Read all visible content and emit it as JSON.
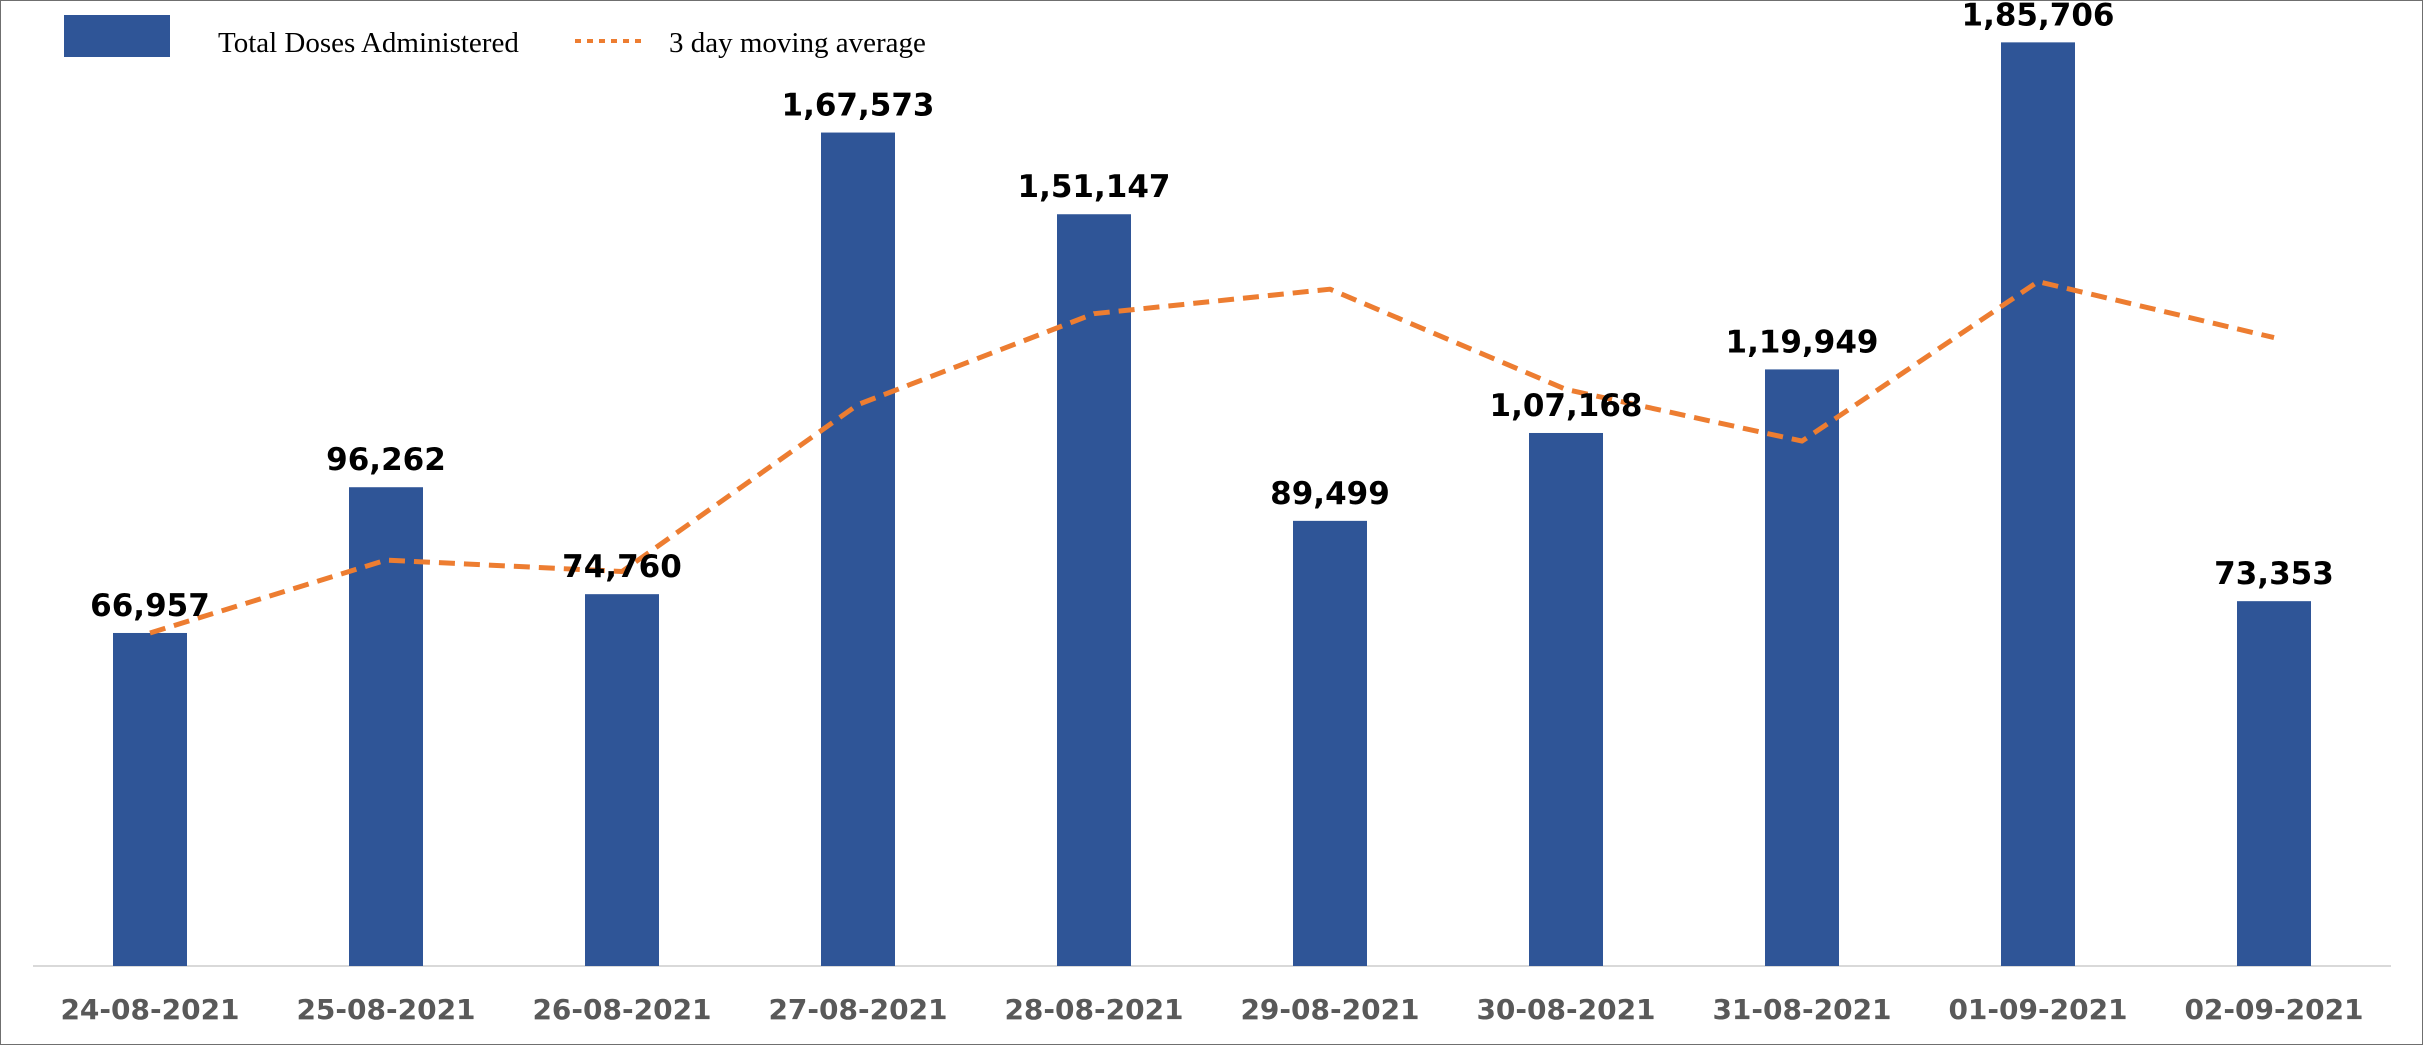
{
  "chart_data": {
    "type": "bar",
    "title": "",
    "xlabel": "",
    "ylabel": "",
    "categories": [
      "24-08-2021",
      "25-08-2021",
      "26-08-2021",
      "27-08-2021",
      "28-08-2021",
      "29-08-2021",
      "30-08-2021",
      "31-08-2021",
      "01-09-2021",
      "02-09-2021"
    ],
    "series": [
      {
        "name": "Total Doses Administered",
        "type": "bar",
        "color": "#2f5597",
        "values": [
          66957,
          96262,
          74760,
          167573,
          151147,
          89499,
          107168,
          119949,
          185706,
          73353
        ],
        "data_labels": [
          "66,957",
          "96,262",
          "74,760",
          "1,67,573",
          "1,51,147",
          "89,499",
          "1,07,168",
          "1,19,949",
          "1,85,706",
          "73,353"
        ]
      },
      {
        "name": "3 day moving average",
        "type": "line",
        "style": "dashed",
        "color": "#ed7d31",
        "values": [
          66957,
          81610,
          79326,
          112865,
          131160,
          136073,
          115938,
          105539,
          137608,
          126336
        ]
      }
    ],
    "ylim": [
      0,
      190000
    ],
    "grid": false,
    "legend_position": "top-left"
  }
}
